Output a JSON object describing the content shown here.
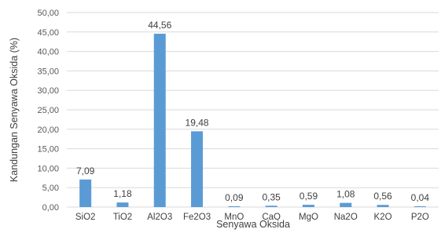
{
  "chart_data": {
    "type": "bar",
    "title": "",
    "xlabel": "Senyawa Oksida",
    "ylabel": "Kandungan Senyawa Oksida (%)",
    "categories": [
      "SiO2",
      "TiO2",
      "Al2O3",
      "Fe2O3",
      "MnO",
      "CaO",
      "MgO",
      "Na2O",
      "K2O",
      "P2O"
    ],
    "values": [
      7.09,
      1.18,
      44.56,
      19.48,
      0.09,
      0.35,
      0.59,
      1.08,
      0.56,
      0.04
    ],
    "value_labels": [
      "7,09",
      "1,18",
      "44,56",
      "19,48",
      "0,09",
      "0,35",
      "0,59",
      "1,08",
      "0,56",
      "0,04"
    ],
    "ylim": [
      0,
      50
    ],
    "yticks": [
      0,
      5,
      10,
      15,
      20,
      25,
      30,
      35,
      40,
      45,
      50
    ],
    "ytick_labels": [
      "0,00",
      "5,00",
      "10,00",
      "15,00",
      "20,00",
      "25,00",
      "30,00",
      "35,00",
      "40,00",
      "45,00",
      "50,00"
    ],
    "grid": true,
    "legend": "none",
    "bar_color": "#5B9BD5",
    "grid_color": "#D9D9D9"
  }
}
